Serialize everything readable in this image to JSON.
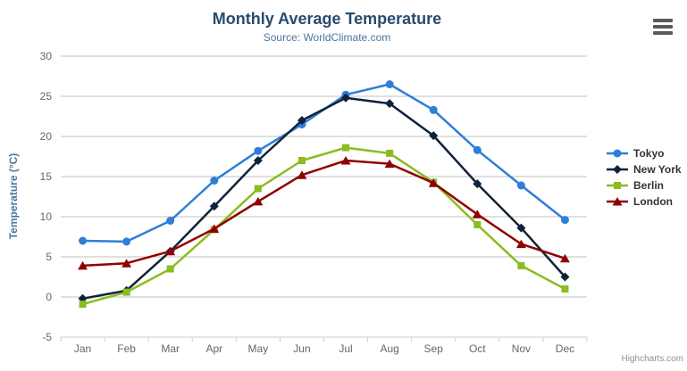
{
  "chart_data": {
    "type": "line",
    "title": "Monthly Average Temperature",
    "subtitle": "Source: WorldClimate.com",
    "categories": [
      "Jan",
      "Feb",
      "Mar",
      "Apr",
      "May",
      "Jun",
      "Jul",
      "Aug",
      "Sep",
      "Oct",
      "Nov",
      "Dec"
    ],
    "series": [
      {
        "name": "Tokyo",
        "color": "#2f7ed8",
        "marker": "circle",
        "values": [
          7.0,
          6.9,
          9.5,
          14.5,
          18.2,
          21.5,
          25.2,
          26.5,
          23.3,
          18.3,
          13.9,
          9.6
        ]
      },
      {
        "name": "New York",
        "color": "#0d233a",
        "marker": "diamond",
        "values": [
          -0.2,
          0.8,
          5.7,
          11.3,
          17.0,
          22.0,
          24.8,
          24.1,
          20.1,
          14.1,
          8.6,
          2.5
        ]
      },
      {
        "name": "Berlin",
        "color": "#8bbc21",
        "marker": "square",
        "values": [
          -0.9,
          0.6,
          3.5,
          8.4,
          13.5,
          17.0,
          18.6,
          17.9,
          14.3,
          9.0,
          3.9,
          1.0
        ]
      },
      {
        "name": "London",
        "color": "#910000",
        "marker": "triangle",
        "values": [
          3.9,
          4.2,
          5.7,
          8.5,
          11.9,
          15.2,
          17.0,
          16.6,
          14.2,
          10.3,
          6.6,
          4.8
        ]
      }
    ],
    "xlabel": "",
    "ylabel": "Temperature (°C)",
    "ylim": [
      -5,
      30
    ],
    "ytick_interval": 5,
    "yticks": [
      -5,
      0,
      5,
      10,
      15,
      20,
      25,
      30
    ],
    "grid": true,
    "legend_position": "right"
  },
  "credits": "Highcharts.com",
  "icons": {
    "export_menu": "hamburger-icon"
  },
  "colors": {
    "title": "#274b6d",
    "subtitle": "#4d759e",
    "axis_title": "#4d759e",
    "tick_label": "#666666",
    "legend_text": "#333333",
    "gridline": "#c0c0c0",
    "axis_line": "#c0d0e0",
    "credits_text": "#909090"
  }
}
